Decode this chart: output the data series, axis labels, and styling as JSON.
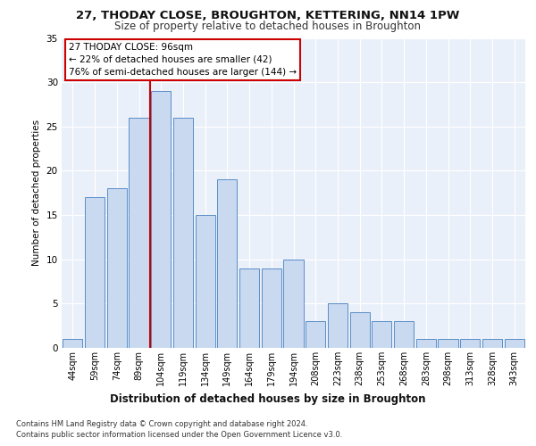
{
  "title": "27, THODAY CLOSE, BROUGHTON, KETTERING, NN14 1PW",
  "subtitle": "Size of property relative to detached houses in Broughton",
  "xlabel": "Distribution of detached houses by size in Broughton",
  "ylabel": "Number of detached properties",
  "categories": [
    "44sqm",
    "59sqm",
    "74sqm",
    "89sqm",
    "104sqm",
    "119sqm",
    "134sqm",
    "149sqm",
    "164sqm",
    "179sqm",
    "194sqm",
    "208sqm",
    "223sqm",
    "238sqm",
    "253sqm",
    "268sqm",
    "283sqm",
    "298sqm",
    "313sqm",
    "328sqm",
    "343sqm"
  ],
  "values": [
    1,
    17,
    18,
    26,
    29,
    26,
    15,
    19,
    9,
    9,
    10,
    3,
    5,
    4,
    3,
    3,
    1,
    1,
    1,
    1,
    1
  ],
  "bar_color": "#c8d9f0",
  "bar_edge_color": "#5b8ec7",
  "red_line_index": 3.5,
  "marker_label": "27 THODAY CLOSE: 96sqm",
  "annotation_line1": "← 22% of detached houses are smaller (42)",
  "annotation_line2": "76% of semi-detached houses are larger (144) →",
  "annotation_box_color": "#ffffff",
  "annotation_box_edge_color": "#cc0000",
  "red_line_color": "#cc0000",
  "ylim": [
    0,
    35
  ],
  "yticks": [
    0,
    5,
    10,
    15,
    20,
    25,
    30,
    35
  ],
  "background_color": "#eaf0f9",
  "grid_color": "#ffffff",
  "footer1": "Contains HM Land Registry data © Crown copyright and database right 2024.",
  "footer2": "Contains public sector information licensed under the Open Government Licence v3.0."
}
